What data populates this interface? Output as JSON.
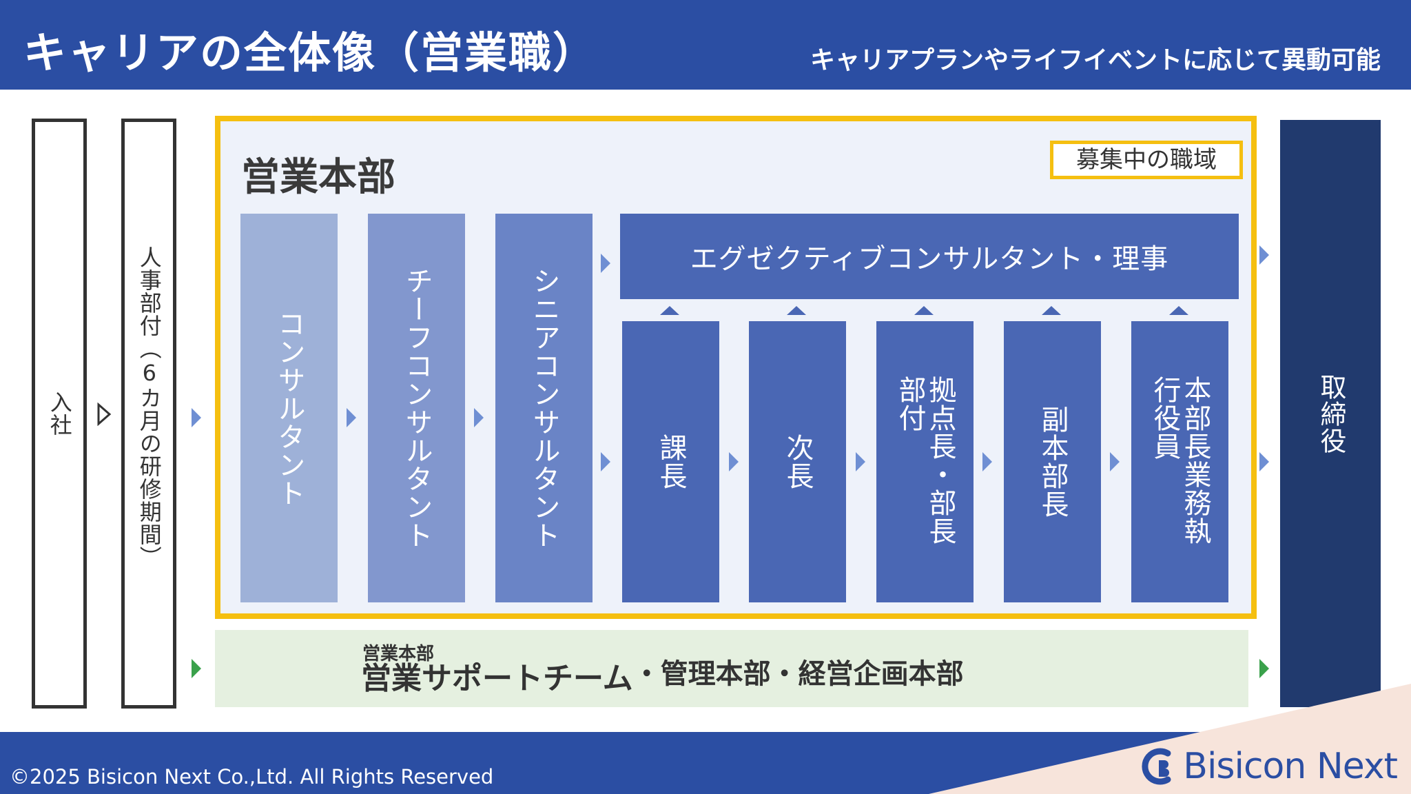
{
  "header": {
    "title": "キャリアの全体像（営業職）",
    "subtitle": "キャリアプランやライフイベントに応じて異動可能"
  },
  "left_steps": {
    "entry": "入社",
    "hr": "人事部付（6カ月の研修期間）"
  },
  "honbu": {
    "title": "営業本部",
    "recruit_badge": "募集中の職域",
    "levels": [
      "コンサルタント",
      "チーフコンサルタント",
      "シニアコンサルタント"
    ],
    "executive": "エグゼクティブコンサルタント・理事",
    "managers": [
      "課長",
      "次長",
      "拠点長・部長部付",
      "副本部長",
      "本部長業務執行役員"
    ]
  },
  "board": "取締役",
  "support": {
    "small": "営業本部",
    "main": "営業サポートチーム",
    "rest": "・管理本部・経営企画本部"
  },
  "footer": {
    "copyright": "©2025 Bisicon Next Co.,Ltd. All Rights Reserved",
    "logo_text": "Bisicon Next"
  },
  "colors": {
    "header_blue": "#2b4ea3",
    "frame_yellow": "#f5bf10",
    "level1": "#9eb1d8",
    "level2": "#8297ce",
    "level3": "#6a84c6",
    "manager": "#4a67b4",
    "board": "#213a6e",
    "support_bg": "#e5f0e0",
    "arrow_green": "#3aa14b"
  }
}
